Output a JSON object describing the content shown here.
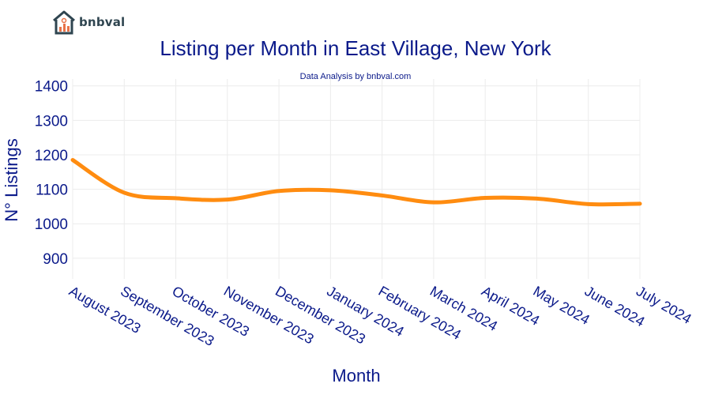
{
  "brand": {
    "name": "bnbval",
    "color": "#2f4550",
    "accent": "#e8734a"
  },
  "chart_data": {
    "type": "line",
    "title": "Listing per Month in East Village, New York",
    "subtitle": "Data Analysis by bnbval.com",
    "xlabel": "Month",
    "ylabel": "N° Listings",
    "categories": [
      "August 2023",
      "September 2023",
      "October 2023",
      "November 2023",
      "December 2023",
      "January 2024",
      "February 2024",
      "March 2024",
      "April 2024",
      "May 2024",
      "June 2024",
      "July 2024"
    ],
    "series": [
      {
        "values": [
          1185,
          1090,
          1074,
          1070,
          1095,
          1097,
          1082,
          1062,
          1075,
          1073,
          1057,
          1058
        ],
        "color": "#ff8c10"
      }
    ],
    "ylim": [
      840,
      1420
    ],
    "yticks": [
      900,
      1000,
      1100,
      1200,
      1300,
      1400
    ],
    "grid": true,
    "title_color": "#0b1a8a"
  }
}
